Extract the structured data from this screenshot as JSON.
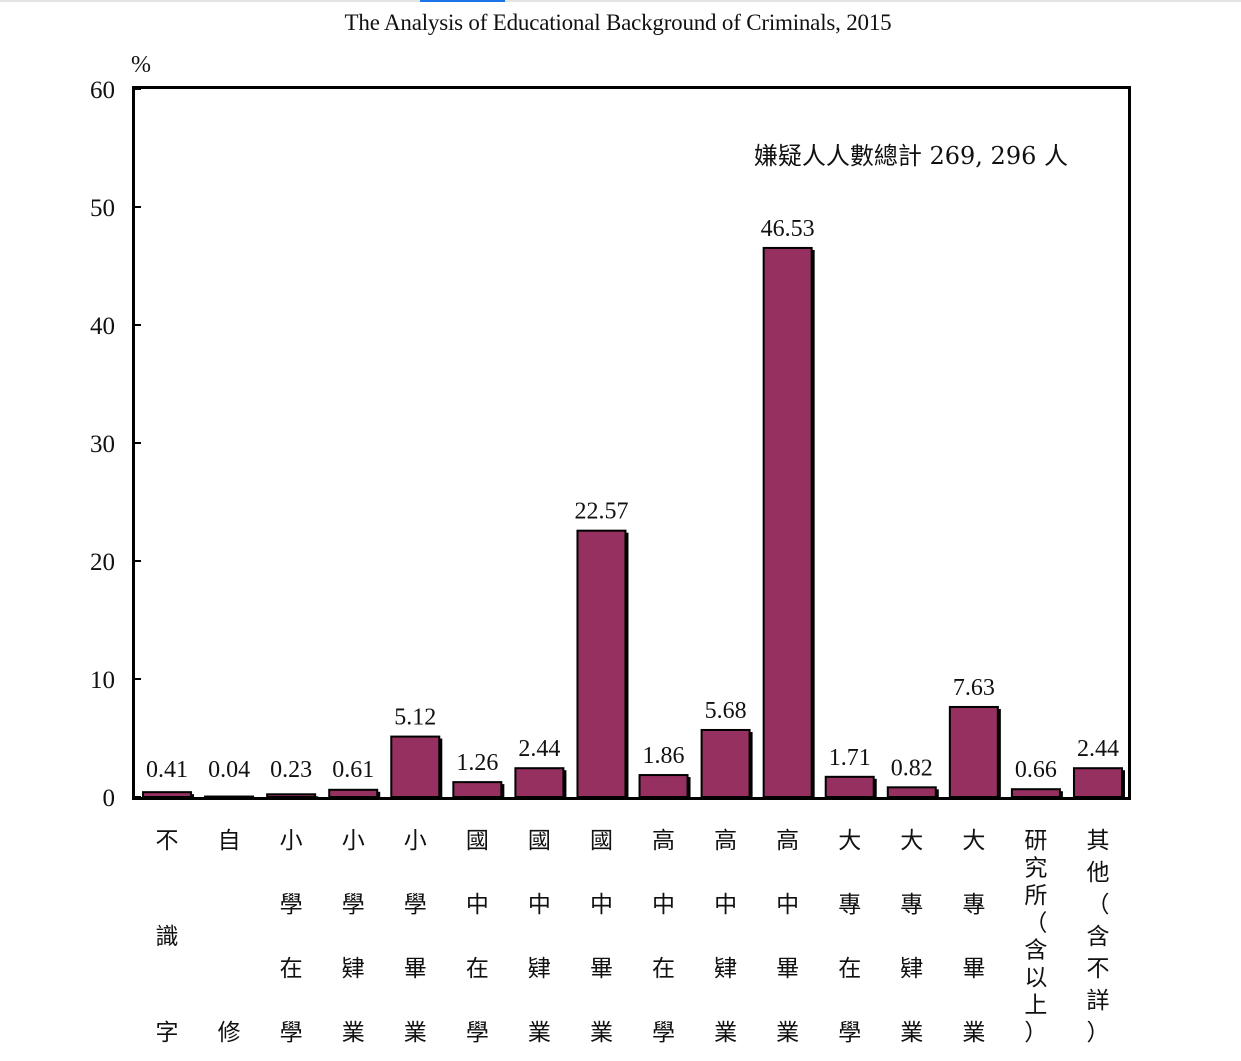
{
  "chart_data": {
    "type": "bar",
    "title": "The Analysis of Educational Background of Criminals, 2015",
    "y_unit": "%",
    "ylim": [
      0,
      60
    ],
    "yticks": [
      0,
      10,
      20,
      30,
      40,
      50,
      60
    ],
    "annotation": "嫌疑人人數總計 269, 296 人",
    "categories": [
      "不識字",
      "自修",
      "小學在學",
      "小學肄業",
      "小學畢業",
      "國中在學",
      "國中肄業",
      "國中畢業",
      "高中在學",
      "高中肄業",
      "高中畢業",
      "大專在學",
      "大專肄業",
      "大專畢業",
      "研究所（含以上）",
      "其他（含不詳）"
    ],
    "values": [
      0.41,
      0.04,
      0.23,
      0.61,
      5.12,
      1.26,
      2.44,
      22.57,
      1.86,
      5.68,
      46.53,
      1.71,
      0.82,
      7.63,
      0.66,
      2.44
    ],
    "value_labels": [
      "0.41",
      "0.04",
      "0.23",
      "0.61",
      "5.12",
      "1.26",
      "2.44",
      "22.57",
      "1.86",
      "5.68",
      "46.53",
      "1.71",
      "0.82",
      "7.63",
      "0.66",
      "2.44"
    ],
    "colors": {
      "bar": "#953060",
      "shadow": "#000000",
      "frame": "#000000"
    },
    "grid": false,
    "legend": "none"
  }
}
